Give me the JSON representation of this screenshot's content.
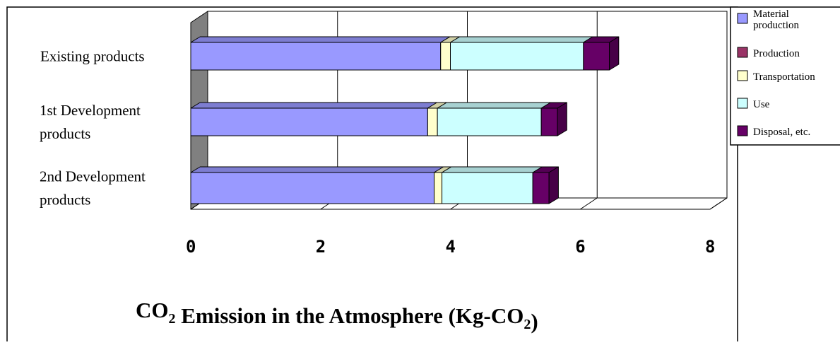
{
  "chart_data": {
    "type": "bar",
    "orientation": "horizontal",
    "stacked": true,
    "three_d": true,
    "categories": [
      [
        "Existing products"
      ],
      [
        "1st Development",
        "products"
      ],
      [
        "2nd Development",
        "products"
      ]
    ],
    "series": [
      {
        "name": [
          "Material",
          "production"
        ],
        "color": "#9999ff",
        "values": [
          3.85,
          3.65,
          3.75
        ]
      },
      {
        "name": [
          "Production"
        ],
        "color": "#993366",
        "values": [
          0.0,
          0.0,
          0.0
        ]
      },
      {
        "name": [
          "Transportation"
        ],
        "color": "#ffffcc",
        "values": [
          0.15,
          0.15,
          0.12
        ]
      },
      {
        "name": [
          "Use"
        ],
        "color": "#ccffff",
        "values": [
          2.05,
          1.6,
          1.4
        ]
      },
      {
        "name": [
          "Disposal, etc."
        ],
        "color": "#660066",
        "values": [
          0.4,
          0.25,
          0.25
        ]
      }
    ],
    "xlim": [
      0,
      8
    ],
    "ticks": [
      "0",
      "2",
      "4",
      "6",
      "8"
    ],
    "xlabel": {
      "parts": [
        {
          "text": "CO",
          "style": "normal"
        },
        {
          "text": "2",
          "style": "sub"
        },
        {
          "text": " Emission in the Atmosphere (Kg-CO",
          "style": "normal"
        },
        {
          "text": "2",
          "style": "sub"
        },
        {
          "text": ")",
          "style": "normal"
        }
      ]
    },
    "grid": true,
    "legend": "top-right",
    "wall_color": "#808080"
  }
}
